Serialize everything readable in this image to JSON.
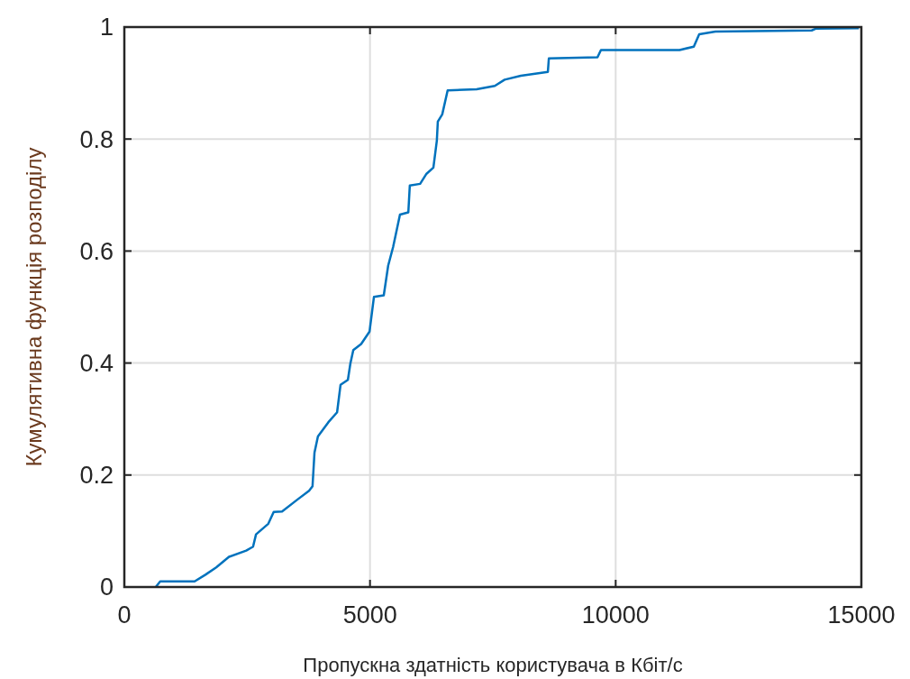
{
  "chart_data": {
    "type": "line",
    "xlabel": "Пропускна здатність користувача в Кбіт/с",
    "ylabel": "Кумулятивна функція розподілу",
    "xlim": [
      0,
      15000
    ],
    "xticks": [
      0,
      5000,
      10000,
      15000
    ],
    "ylim": [
      0,
      1
    ],
    "yticks": [
      0,
      0.2,
      0.4,
      0.6,
      0.8,
      1
    ],
    "grid": true,
    "line_style": "solid",
    "marker": "none",
    "x": [
      640,
      730,
      1430,
      1650,
      1870,
      2130,
      2480,
      2620,
      2680,
      2930,
      3040,
      3210,
      3520,
      3760,
      3830,
      3870,
      3940,
      4150,
      4330,
      4400,
      4550,
      4600,
      4660,
      4820,
      4990,
      5080,
      5280,
      5370,
      5470,
      5610,
      5780,
      5810,
      6020,
      6150,
      6290,
      6360,
      6380,
      6470,
      6580,
      7170,
      7540,
      7740,
      8070,
      8620,
      8640,
      9630,
      9700,
      11300,
      11590,
      11700,
      12030,
      13990,
      14070,
      14950
    ],
    "series": [
      {
        "color": "#0072bd",
        "values": [
          0,
          0.01,
          0.01,
          0.022,
          0.035,
          0.054,
          0.065,
          0.072,
          0.094,
          0.113,
          0.134,
          0.135,
          0.156,
          0.172,
          0.18,
          0.24,
          0.269,
          0.294,
          0.312,
          0.361,
          0.37,
          0.399,
          0.423,
          0.434,
          0.456,
          0.518,
          0.521,
          0.574,
          0.607,
          0.665,
          0.669,
          0.717,
          0.72,
          0.738,
          0.749,
          0.797,
          0.831,
          0.844,
          0.887,
          0.889,
          0.895,
          0.906,
          0.913,
          0.92,
          0.944,
          0.946,
          0.959,
          0.959,
          0.965,
          0.987,
          0.992,
          0.994,
          0.997,
          0.998
        ]
      }
    ]
  }
}
